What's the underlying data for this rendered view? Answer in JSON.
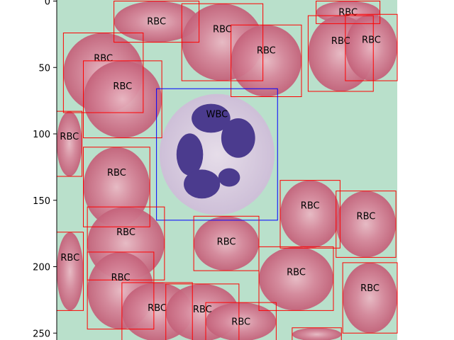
{
  "image": {
    "description_colors": {
      "background": "#b9e0cb",
      "rbc_fill": "#c9687f",
      "rbc_center": "#e7b5c0",
      "wbc_cytoplasm": "#d9cde2",
      "wbc_nucleus": "#4b3b8e"
    }
  },
  "axes": {
    "y_ticks": [
      "0",
      "50",
      "100",
      "150",
      "200",
      "250"
    ]
  },
  "detections": {
    "rbc_color": "#ff0000",
    "wbc_color": "#0000ff",
    "boxes": [
      {
        "label": "RBC",
        "cls": "rbc",
        "x1": 43,
        "y1": 0,
        "x2": 107,
        "y2": 31
      },
      {
        "label": "RBC",
        "cls": "rbc",
        "x1": 94,
        "y1": 2,
        "x2": 155,
        "y2": 60
      },
      {
        "label": "RBC",
        "cls": "rbc",
        "x1": 5,
        "y1": 24,
        "x2": 65,
        "y2": 84
      },
      {
        "label": "RBC",
        "cls": "rbc",
        "x1": 131,
        "y1": 18,
        "x2": 184,
        "y2": 72
      },
      {
        "label": "RBC",
        "cls": "rbc",
        "x1": 195,
        "y1": 0,
        "x2": 243,
        "y2": 17
      },
      {
        "label": "RBC",
        "cls": "rbc",
        "x1": 189,
        "y1": 11,
        "x2": 238,
        "y2": 68
      },
      {
        "label": "RBC",
        "cls": "rbc",
        "x1": 217,
        "y1": 10,
        "x2": 256,
        "y2": 60
      },
      {
        "label": "RBC",
        "cls": "rbc",
        "x1": 20,
        "y1": 45,
        "x2": 79,
        "y2": 103
      },
      {
        "label": "WBC",
        "cls": "wbc",
        "x1": 75,
        "y1": 66,
        "x2": 166,
        "y2": 165
      },
      {
        "label": "RBC",
        "cls": "rbc",
        "x1": 0,
        "y1": 83,
        "x2": 19,
        "y2": 132
      },
      {
        "label": "RBC",
        "cls": "rbc",
        "x1": 20,
        "y1": 110,
        "x2": 70,
        "y2": 170
      },
      {
        "label": "RBC",
        "cls": "rbc",
        "x1": 168,
        "y1": 135,
        "x2": 213,
        "y2": 186
      },
      {
        "label": "RBC",
        "cls": "rbc",
        "x1": 210,
        "y1": 143,
        "x2": 255,
        "y2": 193
      },
      {
        "label": "RBC",
        "cls": "rbc",
        "x1": 23,
        "y1": 155,
        "x2": 81,
        "y2": 210
      },
      {
        "label": "RBC",
        "cls": "rbc",
        "x1": 103,
        "y1": 162,
        "x2": 152,
        "y2": 203
      },
      {
        "label": "RBC",
        "cls": "rbc",
        "x1": 0,
        "y1": 174,
        "x2": 20,
        "y2": 233
      },
      {
        "label": "RBC",
        "cls": "rbc",
        "x1": 152,
        "y1": 185,
        "x2": 208,
        "y2": 233
      },
      {
        "label": "RBC",
        "cls": "rbc",
        "x1": 23,
        "y1": 189,
        "x2": 73,
        "y2": 247
      },
      {
        "label": "RBC",
        "cls": "rbc",
        "x1": 215,
        "y1": 197,
        "x2": 256,
        "y2": 250
      },
      {
        "label": "RBC",
        "cls": "rbc",
        "x1": 49,
        "y1": 212,
        "x2": 102,
        "y2": 256
      },
      {
        "label": "RBC",
        "cls": "rbc",
        "x1": 82,
        "y1": 213,
        "x2": 137,
        "y2": 256
      },
      {
        "label": "RBC",
        "cls": "rbc",
        "x1": 112,
        "y1": 227,
        "x2": 165,
        "y2": 256
      },
      {
        "label": "",
        "cls": "rbc",
        "x1": 177,
        "y1": 246,
        "x2": 214,
        "y2": 256
      }
    ]
  }
}
